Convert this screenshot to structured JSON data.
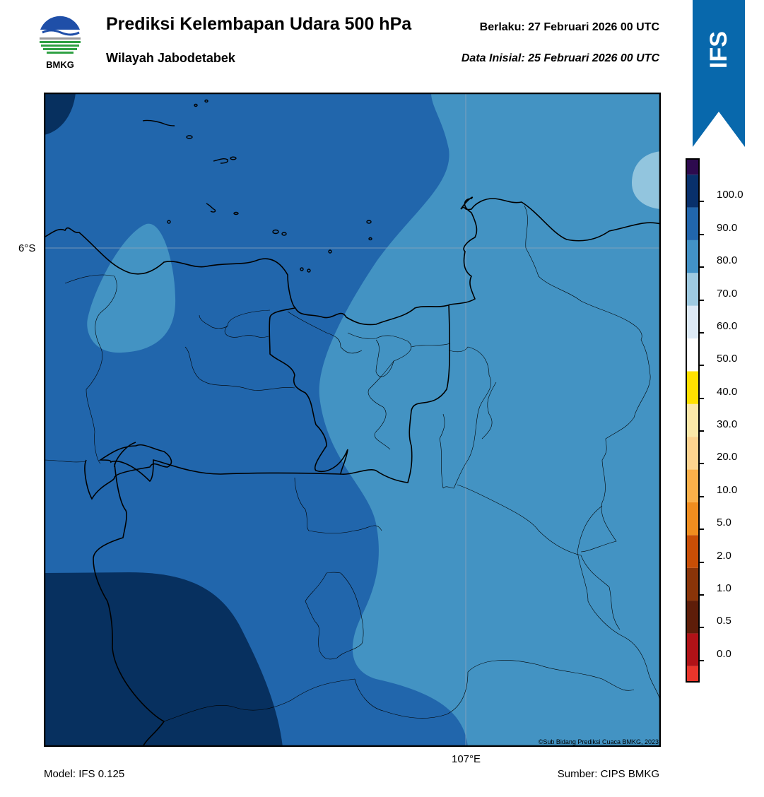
{
  "header": {
    "logo_text": "BMKG",
    "title": "Prediksi Kelembapan Udara 500 hPa",
    "subtitle": "Wilayah Jabodetabek",
    "valid": "Berlaku:  27 Februari 2026 00 UTC",
    "initial": "Data Inisial:  25 Februari 2026 00 UTC",
    "badge": "IFS"
  },
  "map": {
    "lat_label": "6°S",
    "lon_label": "107°E",
    "credit": "©Sub Bidang Prediksi Cuaca BMKG, 2023"
  },
  "footer": {
    "model": "Model: IFS 0.125",
    "source": "Sumber: CIPS BMKG"
  },
  "colorbar": {
    "labels": [
      "0.0",
      "0.5",
      "1.0",
      "2.0",
      "5.0",
      "10.0",
      "20.0",
      "30.0",
      "40.0",
      "50.0",
      "60.0",
      "70.0",
      "80.0",
      "90.0",
      "100.0"
    ],
    "colors": [
      "#e8352b",
      "#b01217",
      "#5e1d09",
      "#8a3408",
      "#c84e06",
      "#f08d1f",
      "#fbb04a",
      "#fdd38f",
      "#fbe8a8",
      "#ffe000",
      "#ffffff",
      "#ddeaf6",
      "#9ecae1",
      "#4292c6",
      "#2166ac",
      "#08306b",
      "#2d0a4e"
    ]
  },
  "palette": {
    "shade_100": "#07305f",
    "shade_80": "#2166ac",
    "shade_70": "#4393c3",
    "shade_60": "#92c5de",
    "banner": "#0868ac"
  }
}
